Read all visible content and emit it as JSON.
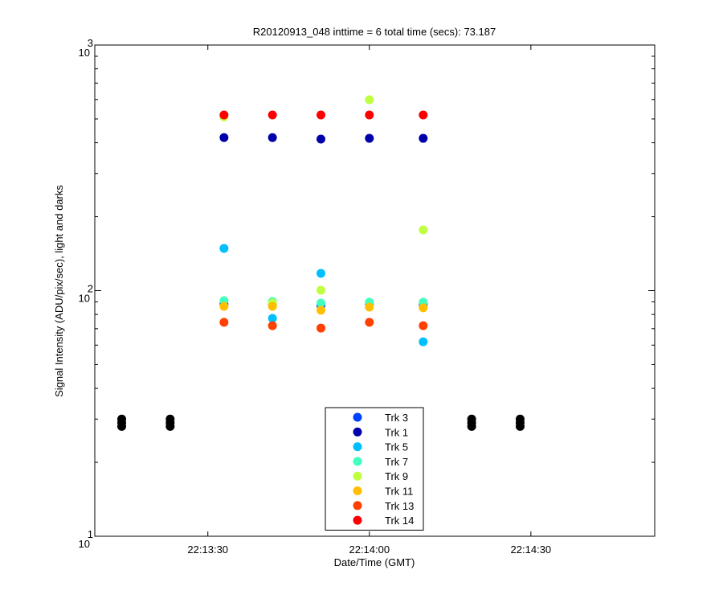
{
  "chart_data": {
    "type": "scatter",
    "title": "R20120913_048 inttime = 6 total time (secs): 73.187",
    "x_label": "Date/Time (GMT)",
    "y_label": "Signal Intensity (ADU/pix/sec), light and darks",
    "log_y": true,
    "xlim": [
      "22:13:09",
      "22:14:53"
    ],
    "xticks": [
      "22:13:30",
      "22:14:00",
      "22:14:30"
    ],
    "ylim": [
      10,
      1000
    ],
    "yticks": [
      {
        "value": 10,
        "label": "10",
        "exponent": "1"
      },
      {
        "value": 100,
        "label": "10",
        "exponent": "2"
      },
      {
        "value": 1000,
        "label": "10",
        "exponent": "3"
      }
    ],
    "legend": "bottom-center",
    "series": [
      {
        "color": "#000000",
        "x": [
          "22:13:14",
          "22:13:14",
          "22:13:14",
          "22:13:23",
          "22:13:23",
          "22:13:23",
          "22:14:19",
          "22:14:19",
          "22:14:19",
          "22:14:28",
          "22:14:28",
          "22:14:28"
        ],
        "values": [
          28,
          29,
          30,
          28,
          29,
          30,
          28,
          29,
          30,
          28,
          29,
          30
        ]
      },
      {
        "name": "Trk 3",
        "color": "#0040ff",
        "x": [
          "22:13:33",
          "22:13:42",
          "22:13:51",
          "22:14:00",
          "22:14:10"
        ],
        "values": [
          88,
          88,
          87,
          88,
          88
        ]
      },
      {
        "name": "Trk 1",
        "color": "#0000aa",
        "x": [
          "22:13:33",
          "22:13:42",
          "22:13:51",
          "22:14:00",
          "22:14:10"
        ],
        "values": [
          420,
          420,
          414,
          417,
          417
        ]
      },
      {
        "name": "Trk 5",
        "color": "#00bfff",
        "x": [
          "22:13:33",
          "22:13:42",
          "22:13:51",
          "22:14:00",
          "22:14:10"
        ],
        "values": [
          148.6,
          77.1,
          117.6,
          88,
          61.9
        ]
      },
      {
        "name": "Trk 7",
        "color": "#40ffbf",
        "x": [
          "22:13:33",
          "22:13:42",
          "22:13:51",
          "22:14:00",
          "22:14:10"
        ],
        "values": [
          91,
          90.3,
          89,
          89.7,
          89.7
        ]
      },
      {
        "name": "Trk 9",
        "color": "#bfff40",
        "x": [
          "22:13:33",
          "22:13:42",
          "22:13:51",
          "22:14:00",
          "22:14:10"
        ],
        "values": [
          510,
          89,
          100.4,
          599,
          176.7
        ]
      },
      {
        "name": "Trk 11",
        "color": "#ffbf00",
        "x": [
          "22:13:33",
          "22:13:42",
          "22:13:51",
          "22:14:00",
          "22:14:10"
        ],
        "values": [
          86.3,
          86.3,
          83.2,
          85.7,
          85.1
        ]
      },
      {
        "name": "Trk 13",
        "color": "#ff4000",
        "x": [
          "22:13:33",
          "22:13:42",
          "22:13:51",
          "22:14:00",
          "22:14:10"
        ],
        "values": [
          74.3,
          72,
          70.4,
          74.3,
          72
        ]
      },
      {
        "name": "Trk 14",
        "color": "#ff0000",
        "x": [
          "22:13:33",
          "22:13:42",
          "22:13:51",
          "22:14:00",
          "22:14:10"
        ],
        "values": [
          519,
          519,
          519,
          519,
          519
        ]
      }
    ]
  }
}
